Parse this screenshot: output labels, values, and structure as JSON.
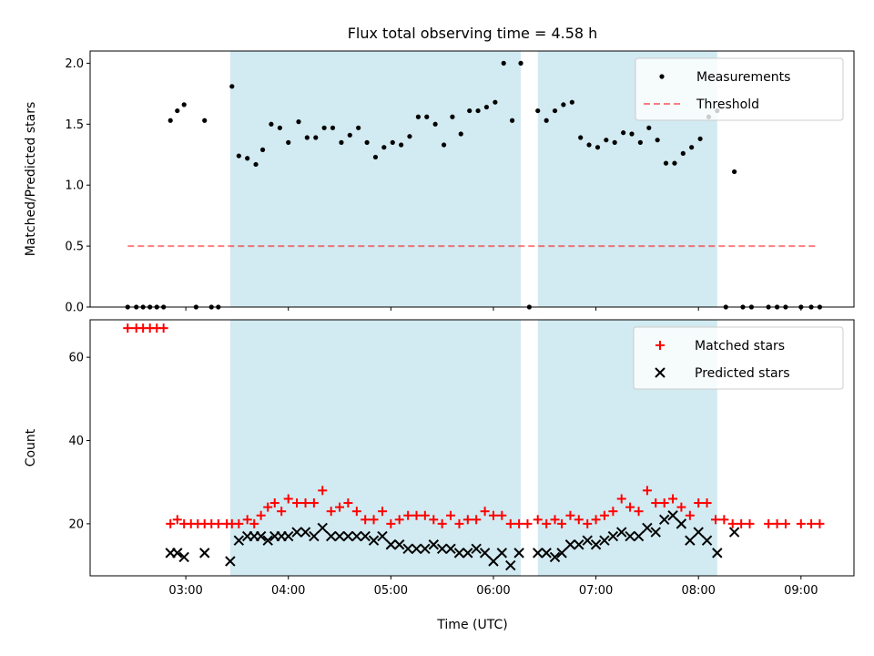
{
  "chart_data": {
    "title": "Flux total observing time = 4.58 h",
    "xlabel": "Time (UTC)",
    "x_ticks": [
      "03:00",
      "04:00",
      "05:00",
      "06:00",
      "07:00",
      "08:00",
      "09:00"
    ],
    "x_tick_hours": [
      3,
      4,
      5,
      6,
      7,
      8,
      9
    ],
    "xlim_hours": [
      2.0667,
      9.5167
    ],
    "shaded_intervals_hours": [
      [
        3.4333,
        6.2667
      ],
      [
        6.4333,
        8.1833
      ]
    ],
    "shade_color": "#add8e6",
    "top_panel": {
      "type": "scatter",
      "ylabel": "Matched/Predicted stars",
      "ylim": [
        0,
        2.1
      ],
      "y_ticks": [
        "0.0",
        "0.5",
        "1.0",
        "1.5",
        "2.0"
      ],
      "y_tick_values": [
        0,
        0.5,
        1.0,
        1.5,
        2.0
      ],
      "threshold": {
        "name": "Threshold",
        "value": 0.5,
        "x_range_hours": [
          2.4333,
          9.15
        ],
        "color": "#ff0000",
        "style": "dashed"
      },
      "measurements": {
        "name": "Measurements",
        "color": "#000000",
        "x_hours": [
          2.433,
          2.517,
          2.583,
          2.65,
          2.717,
          2.783,
          2.85,
          2.917,
          2.983,
          3.1,
          3.183,
          3.25,
          3.317,
          3.45,
          3.517,
          3.6,
          3.683,
          3.75,
          3.833,
          3.917,
          4.0,
          4.1,
          4.183,
          4.267,
          4.35,
          4.433,
          4.517,
          4.6,
          4.683,
          4.767,
          4.85,
          4.933,
          5.017,
          5.1,
          5.183,
          5.267,
          5.35,
          5.433,
          5.517,
          5.6,
          5.683,
          5.767,
          5.85,
          5.933,
          6.017,
          6.1,
          6.183,
          6.267,
          6.35,
          6.433,
          6.517,
          6.6,
          6.683,
          6.767,
          6.85,
          6.933,
          7.017,
          7.1,
          7.183,
          7.267,
          7.35,
          7.433,
          7.517,
          7.6,
          7.683,
          7.767,
          7.85,
          7.933,
          8.017,
          8.1,
          8.183,
          8.267,
          8.35,
          8.433,
          8.517,
          8.683,
          8.767,
          8.85,
          9.0,
          9.1,
          9.183
        ],
        "y_values": [
          0,
          0,
          0,
          0,
          0,
          0,
          1.53,
          1.61,
          1.66,
          0,
          1.53,
          0,
          0,
          1.81,
          1.24,
          1.22,
          1.17,
          1.29,
          1.5,
          1.47,
          1.35,
          1.52,
          1.39,
          1.39,
          1.47,
          1.47,
          1.35,
          1.41,
          1.47,
          1.35,
          1.23,
          1.31,
          1.35,
          1.33,
          1.4,
          1.56,
          1.56,
          1.5,
          1.33,
          1.56,
          1.42,
          1.61,
          1.61,
          1.64,
          1.68,
          2.0,
          1.53,
          2.0,
          0,
          1.61,
          1.53,
          1.61,
          1.66,
          1.68,
          1.39,
          1.33,
          1.31,
          1.37,
          1.35,
          1.43,
          1.42,
          1.35,
          1.47,
          1.37,
          1.18,
          1.18,
          1.26,
          1.31,
          1.38,
          1.56,
          1.61,
          0,
          1.11,
          0,
          0,
          0,
          0,
          0,
          0,
          0,
          0
        ]
      }
    },
    "bottom_panel": {
      "type": "scatter",
      "ylabel": "Count",
      "ylim": [
        7.5,
        69.0
      ],
      "y_ticks": [
        "20",
        "40",
        "60"
      ],
      "y_tick_values": [
        20,
        40,
        60
      ],
      "series": [
        {
          "name": "Matched stars",
          "marker": "plus",
          "color": "#ff0000",
          "x_hours": [
            2.433,
            2.517,
            2.583,
            2.65,
            2.717,
            2.783,
            2.85,
            2.917,
            2.983,
            3.05,
            3.117,
            3.183,
            3.25,
            3.317,
            3.4,
            3.45,
            3.517,
            3.6,
            3.667,
            3.733,
            3.8,
            3.867,
            3.933,
            4.0,
            4.083,
            4.167,
            4.25,
            4.333,
            4.417,
            4.5,
            4.583,
            4.667,
            4.75,
            4.833,
            4.917,
            5.0,
            5.083,
            5.167,
            5.25,
            5.333,
            5.417,
            5.5,
            5.583,
            5.667,
            5.75,
            5.833,
            5.917,
            6.0,
            6.083,
            6.167,
            6.25,
            6.333,
            6.433,
            6.517,
            6.6,
            6.667,
            6.75,
            6.833,
            6.917,
            7.0,
            7.083,
            7.167,
            7.25,
            7.333,
            7.417,
            7.5,
            7.583,
            7.667,
            7.75,
            7.833,
            7.917,
            8.0,
            8.083,
            8.167,
            8.25,
            8.333,
            8.417,
            8.5,
            8.683,
            8.767,
            8.85,
            9.0,
            9.1,
            9.183
          ],
          "y_values": [
            67,
            67,
            67,
            67,
            67,
            67,
            20,
            21,
            20,
            20,
            20,
            20,
            20,
            20,
            20,
            20,
            20,
            21,
            20,
            22,
            24,
            25,
            23,
            26,
            25,
            25,
            25,
            28,
            23,
            24,
            25,
            23,
            21,
            21,
            23,
            20,
            21,
            22,
            22,
            22,
            21,
            20,
            22,
            20,
            21,
            21,
            23,
            22,
            22,
            20,
            20,
            20,
            21,
            20,
            21,
            20,
            22,
            21,
            20,
            21,
            22,
            23,
            26,
            24,
            23,
            28,
            25,
            25,
            26,
            24,
            22,
            25,
            25,
            21,
            21,
            20,
            20,
            20,
            20,
            20,
            20,
            20,
            20,
            20
          ]
        },
        {
          "name": "Predicted stars",
          "marker": "x",
          "color": "#000000",
          "x_hours": [
            2.85,
            2.917,
            2.983,
            3.183,
            3.433,
            3.517,
            3.6,
            3.667,
            3.733,
            3.8,
            3.867,
            3.933,
            4.0,
            4.083,
            4.167,
            4.25,
            4.333,
            4.417,
            4.5,
            4.583,
            4.667,
            4.75,
            4.833,
            4.917,
            5.0,
            5.083,
            5.167,
            5.25,
            5.333,
            5.417,
            5.5,
            5.583,
            5.667,
            5.75,
            5.833,
            5.917,
            6.0,
            6.083,
            6.167,
            6.25,
            6.433,
            6.517,
            6.6,
            6.667,
            6.75,
            6.833,
            6.917,
            7.0,
            7.083,
            7.167,
            7.25,
            7.333,
            7.417,
            7.5,
            7.583,
            7.667,
            7.75,
            7.833,
            7.917,
            8.0,
            8.083,
            8.183,
            8.35
          ],
          "y_values": [
            13,
            13,
            12,
            13,
            11,
            16,
            17,
            17,
            17,
            16,
            17,
            17,
            17,
            18,
            18,
            17,
            19,
            17,
            17,
            17,
            17,
            17,
            16,
            17,
            15,
            15,
            14,
            14,
            14,
            15,
            14,
            14,
            13,
            13,
            14,
            13,
            11,
            13,
            10,
            13,
            13,
            13,
            12,
            13,
            15,
            15,
            16,
            15,
            16,
            17,
            18,
            17,
            17,
            19,
            18,
            21,
            22,
            20,
            16,
            18,
            16,
            13,
            18
          ]
        }
      ]
    }
  }
}
